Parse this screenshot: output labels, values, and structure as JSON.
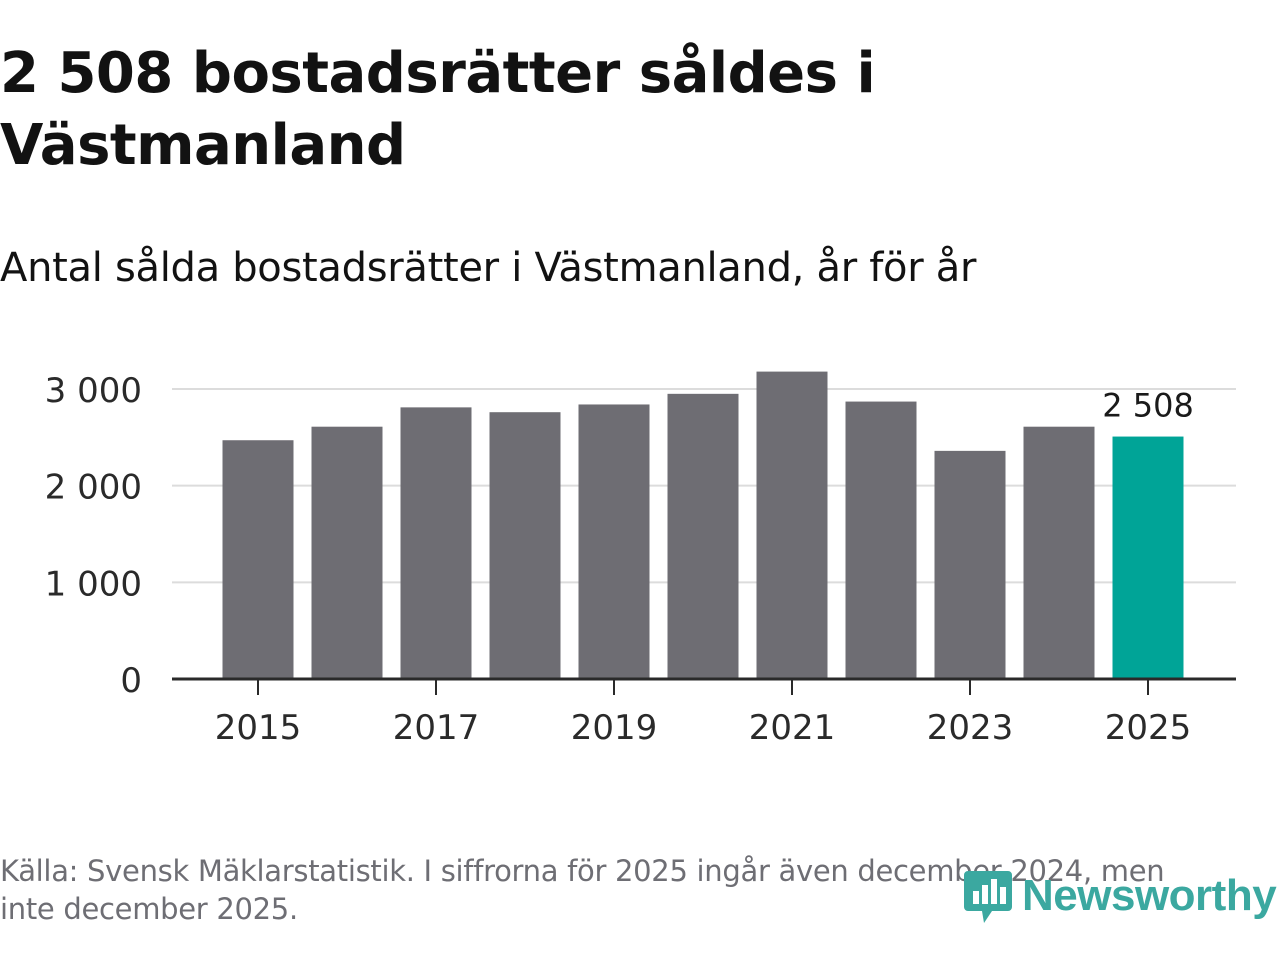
{
  "header": {
    "title": "2 508 bostadsrätter såldes i Västmanland",
    "subtitle": "Antal sålda bostadsrätter i Västmanland, år för år"
  },
  "footer": {
    "source": "Källa: Svensk Mäklarstatistik. I siffrorna för 2025 ingår även december 2024, men inte december 2025.",
    "brand": "Newsworthy",
    "brand_icon": "newsworthy-logo-icon",
    "brand_color": "#3ba8a0"
  },
  "chart_data": {
    "type": "bar",
    "title": "Antal sålda bostadsrätter i Västmanland, år för år",
    "xlabel": "",
    "ylabel": "",
    "categories": [
      "2015",
      "2016",
      "2017",
      "2018",
      "2019",
      "2020",
      "2021",
      "2022",
      "2023",
      "2024",
      "2025"
    ],
    "values": [
      2470,
      2610,
      2810,
      2760,
      2840,
      2950,
      3180,
      2870,
      2360,
      2610,
      2508
    ],
    "ylim": [
      0,
      3300
    ],
    "y_ticks": [
      0,
      1000,
      2000,
      3000
    ],
    "y_tick_labels": [
      "0",
      "1 000",
      "2 000",
      "3 000"
    ],
    "x_tick_labels": [
      "2015",
      "2017",
      "2019",
      "2021",
      "2023",
      "2025"
    ],
    "highlight": {
      "category": "2025",
      "label": "2 508"
    },
    "grid": true,
    "colors": {
      "bar": "#6e6d73",
      "highlight": "#00a497",
      "grid": "#dcdcdc",
      "axis": "#2a2a2a",
      "text": "#2a2a2a"
    }
  }
}
